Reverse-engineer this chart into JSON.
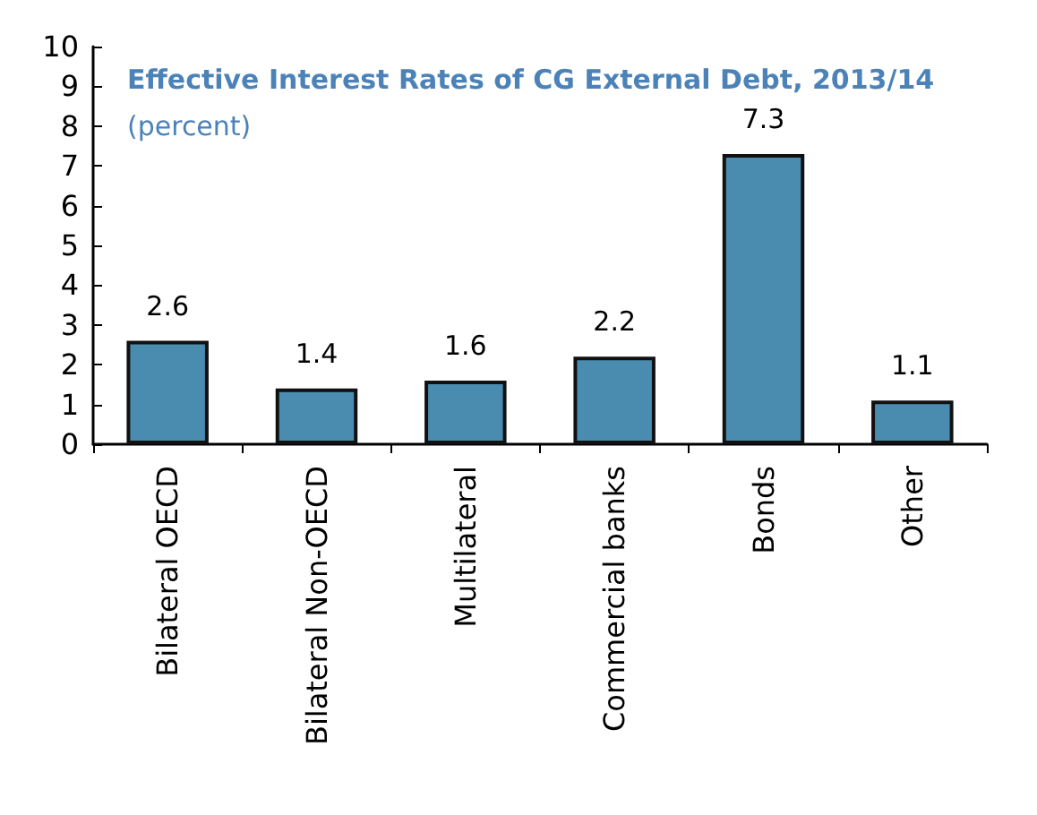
{
  "chart_data": {
    "type": "bar",
    "title": "Effective Interest Rates of CG External Debt, 2013/14",
    "subtitle": "(percent)",
    "categories": [
      "Bilateral OECD",
      "Bilateral Non-OECD",
      "Multilateral",
      "Commercial banks",
      "Bonds",
      "Other"
    ],
    "values": [
      2.6,
      1.4,
      1.6,
      2.2,
      7.3,
      1.1
    ],
    "color": "#4a8cb0",
    "ylim": [
      0,
      10
    ],
    "yticks": [
      0,
      1,
      2,
      3,
      4,
      5,
      6,
      7,
      8,
      9,
      10
    ],
    "grid": false,
    "data_labels": true
  }
}
